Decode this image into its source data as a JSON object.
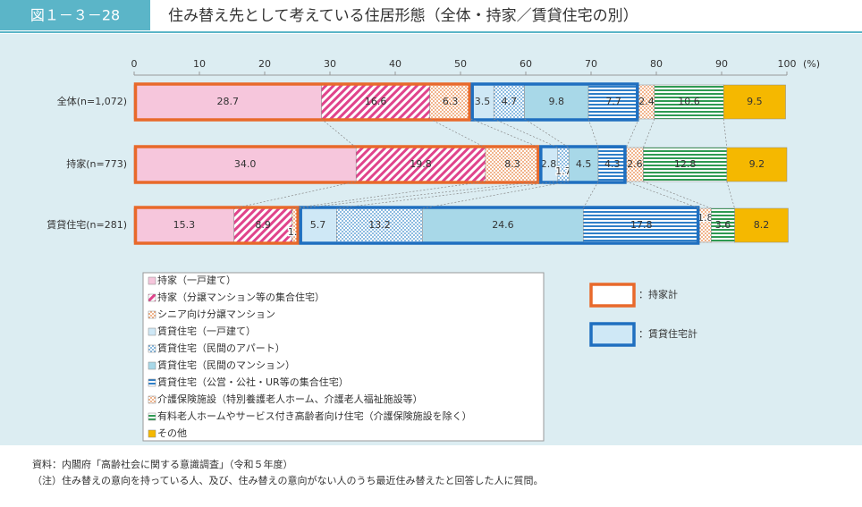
{
  "header": {
    "figure_no": "図１－３－28",
    "title": "住み替え先として考えている住居形態（全体・持家／賃貸住宅の別）"
  },
  "chart_data": {
    "type": "stacked-barh",
    "categories": [
      "全体(n=1,072)",
      "持家(n=773)",
      "賃貸住宅(n=281)"
    ],
    "xlim": [
      0,
      100
    ],
    "xticks": [
      0,
      10,
      20,
      30,
      40,
      50,
      60,
      70,
      80,
      90,
      100
    ],
    "x_unit": "(%)",
    "series": [
      {
        "name": "持家（一戸建て）",
        "color": "#f6c6dc",
        "pattern": "solid",
        "values": [
          28.7,
          34.0,
          15.3
        ],
        "value_labels": [
          "28.7",
          "34.0",
          "15.3"
        ]
      },
      {
        "name": "持家（分譲マンション等の集合住宅）",
        "color": "#e0448c",
        "pattern": "diagonal",
        "values": [
          16.6,
          19.8,
          8.9
        ]
      },
      {
        "name": "シニア向け分譲マンション",
        "color": "#e8803c",
        "pattern": "dots",
        "values": [
          6.3,
          8.3,
          1.1
        ]
      },
      {
        "name": "賃貸住宅（一戸建て）",
        "color": "#cfe8f6",
        "pattern": "solid",
        "values": [
          3.5,
          2.8,
          5.7
        ]
      },
      {
        "name": "賃貸住宅（民間のアパート）",
        "color": "#3c8ccc",
        "pattern": "dots",
        "values": [
          4.7,
          1.7,
          13.2
        ]
      },
      {
        "name": "賃貸住宅（民間のマンション）",
        "color": "#a8d8e8",
        "pattern": "solid",
        "values": [
          9.8,
          4.5,
          24.6
        ]
      },
      {
        "name": "賃貸住宅（公営・公社・UR等の集合住宅）",
        "color": "#2f7fc8",
        "pattern": "hstripes",
        "values": [
          7.7,
          4.3,
          17.8
        ]
      },
      {
        "name": "介護保険施設（特別養護老人ホーム、介護老人福祉施設等）",
        "color": "#e8803c",
        "pattern": "dots",
        "values": [
          2.4,
          2.6,
          1.8
        ]
      },
      {
        "name": "有料老人ホームやサービス付き高齢者向け住宅（介護保険施設を除く）",
        "color": "#2e9a52",
        "pattern": "hstripes",
        "values": [
          10.6,
          12.8,
          3.6
        ]
      },
      {
        "name": "その他",
        "color": "#f5b800",
        "pattern": "solid",
        "values": [
          9.5,
          9.2,
          8.2
        ]
      }
    ],
    "group_boxes": [
      {
        "label": "：持家計",
        "color": "#e8692b"
      },
      {
        "label": "：賃貸住宅計",
        "color": "#1f6fc0"
      }
    ]
  },
  "notes": [
    "資料：内閣府「高齢社会に関する意識調査」（令和５年度）",
    "（注）住み替えの意向を持っている人、及び、住み替えの意向がない人のうち最近住み替えたと回答した人に質問。"
  ]
}
